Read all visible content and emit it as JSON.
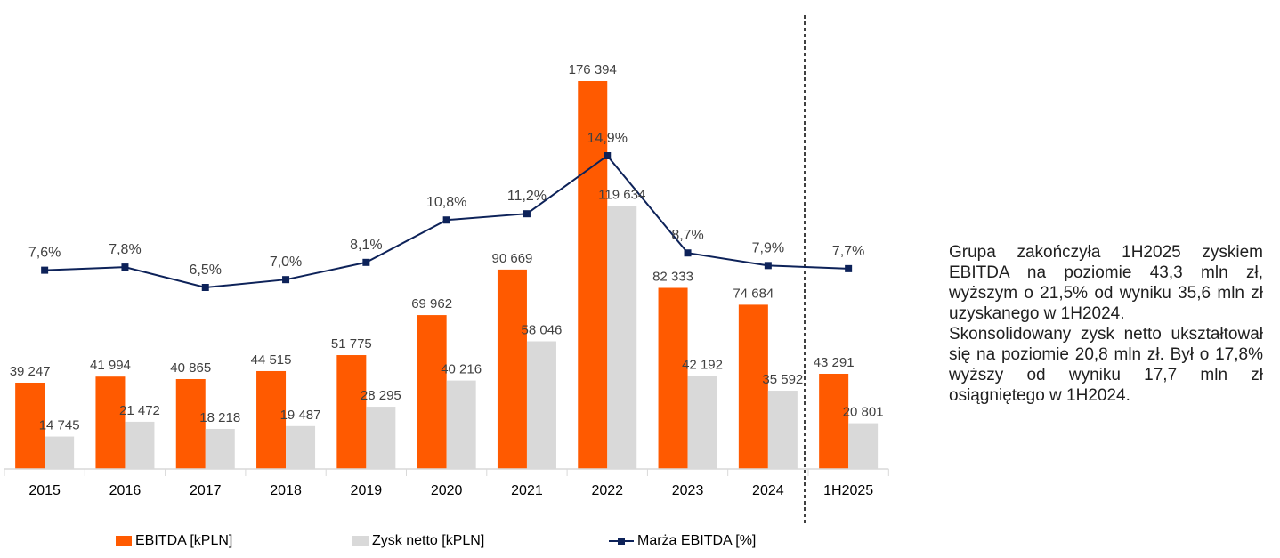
{
  "chart_data": {
    "type": "bar",
    "categories": [
      "2015",
      "2016",
      "2017",
      "2018",
      "2019",
      "2020",
      "2021",
      "2022",
      "2023",
      "2024",
      "1H2025"
    ],
    "series": [
      {
        "name": "EBITDA [kPLN]",
        "kind": "bar",
        "color": "#ff5a00",
        "values": [
          39247,
          41994,
          40865,
          44515,
          51775,
          69962,
          90669,
          176394,
          82333,
          74684,
          43291
        ],
        "labels": [
          "39 247",
          "41 994",
          "40 865",
          "44 515",
          "51 775",
          "69 962",
          "90 669",
          "176 394",
          "82 333",
          "74 684",
          "43 291"
        ]
      },
      {
        "name": "Zysk netto [kPLN]",
        "kind": "bar",
        "color": "#d9d9d9",
        "values": [
          14745,
          21472,
          18218,
          19487,
          28295,
          40216,
          58046,
          119634,
          42192,
          35592,
          20801
        ],
        "labels": [
          "14 745",
          "21 472",
          "18 218",
          "19 487",
          "28 295",
          "40 216",
          "58 046",
          "119 634",
          "42 192",
          "35 592",
          "20 801"
        ]
      },
      {
        "name": "Marża EBITDA [%]",
        "kind": "line",
        "color": "#0d2259",
        "values": [
          7.6,
          7.8,
          6.5,
          7.0,
          8.1,
          10.8,
          11.2,
          14.9,
          8.7,
          7.9,
          7.7
        ],
        "labels": [
          "7,6%",
          "7,8%",
          "6,5%",
          "7,0%",
          "8,1%",
          "10,8%",
          "11,2%",
          "14,9%",
          "8,7%",
          "7,9%",
          "7,7%"
        ]
      }
    ],
    "ylim_bars": [
      0,
      176394
    ],
    "divider_before": "1H2025",
    "legend_position": "bottom"
  },
  "commentary": [
    "Grupa zakończyła 1H2025 zyskiem EBITDA na poziomie 43,3 mln zł, wyższym o  21,5% od wyniku 35,6 mln zł uzyskanego w 1H2024.",
    "Skonsolidowany zysk netto ukształtował się na poziomie 20,8 mln zł. Był o 17,8% wyższy od wyniku 17,7 mln zł osiągniętego w 1H2024."
  ]
}
